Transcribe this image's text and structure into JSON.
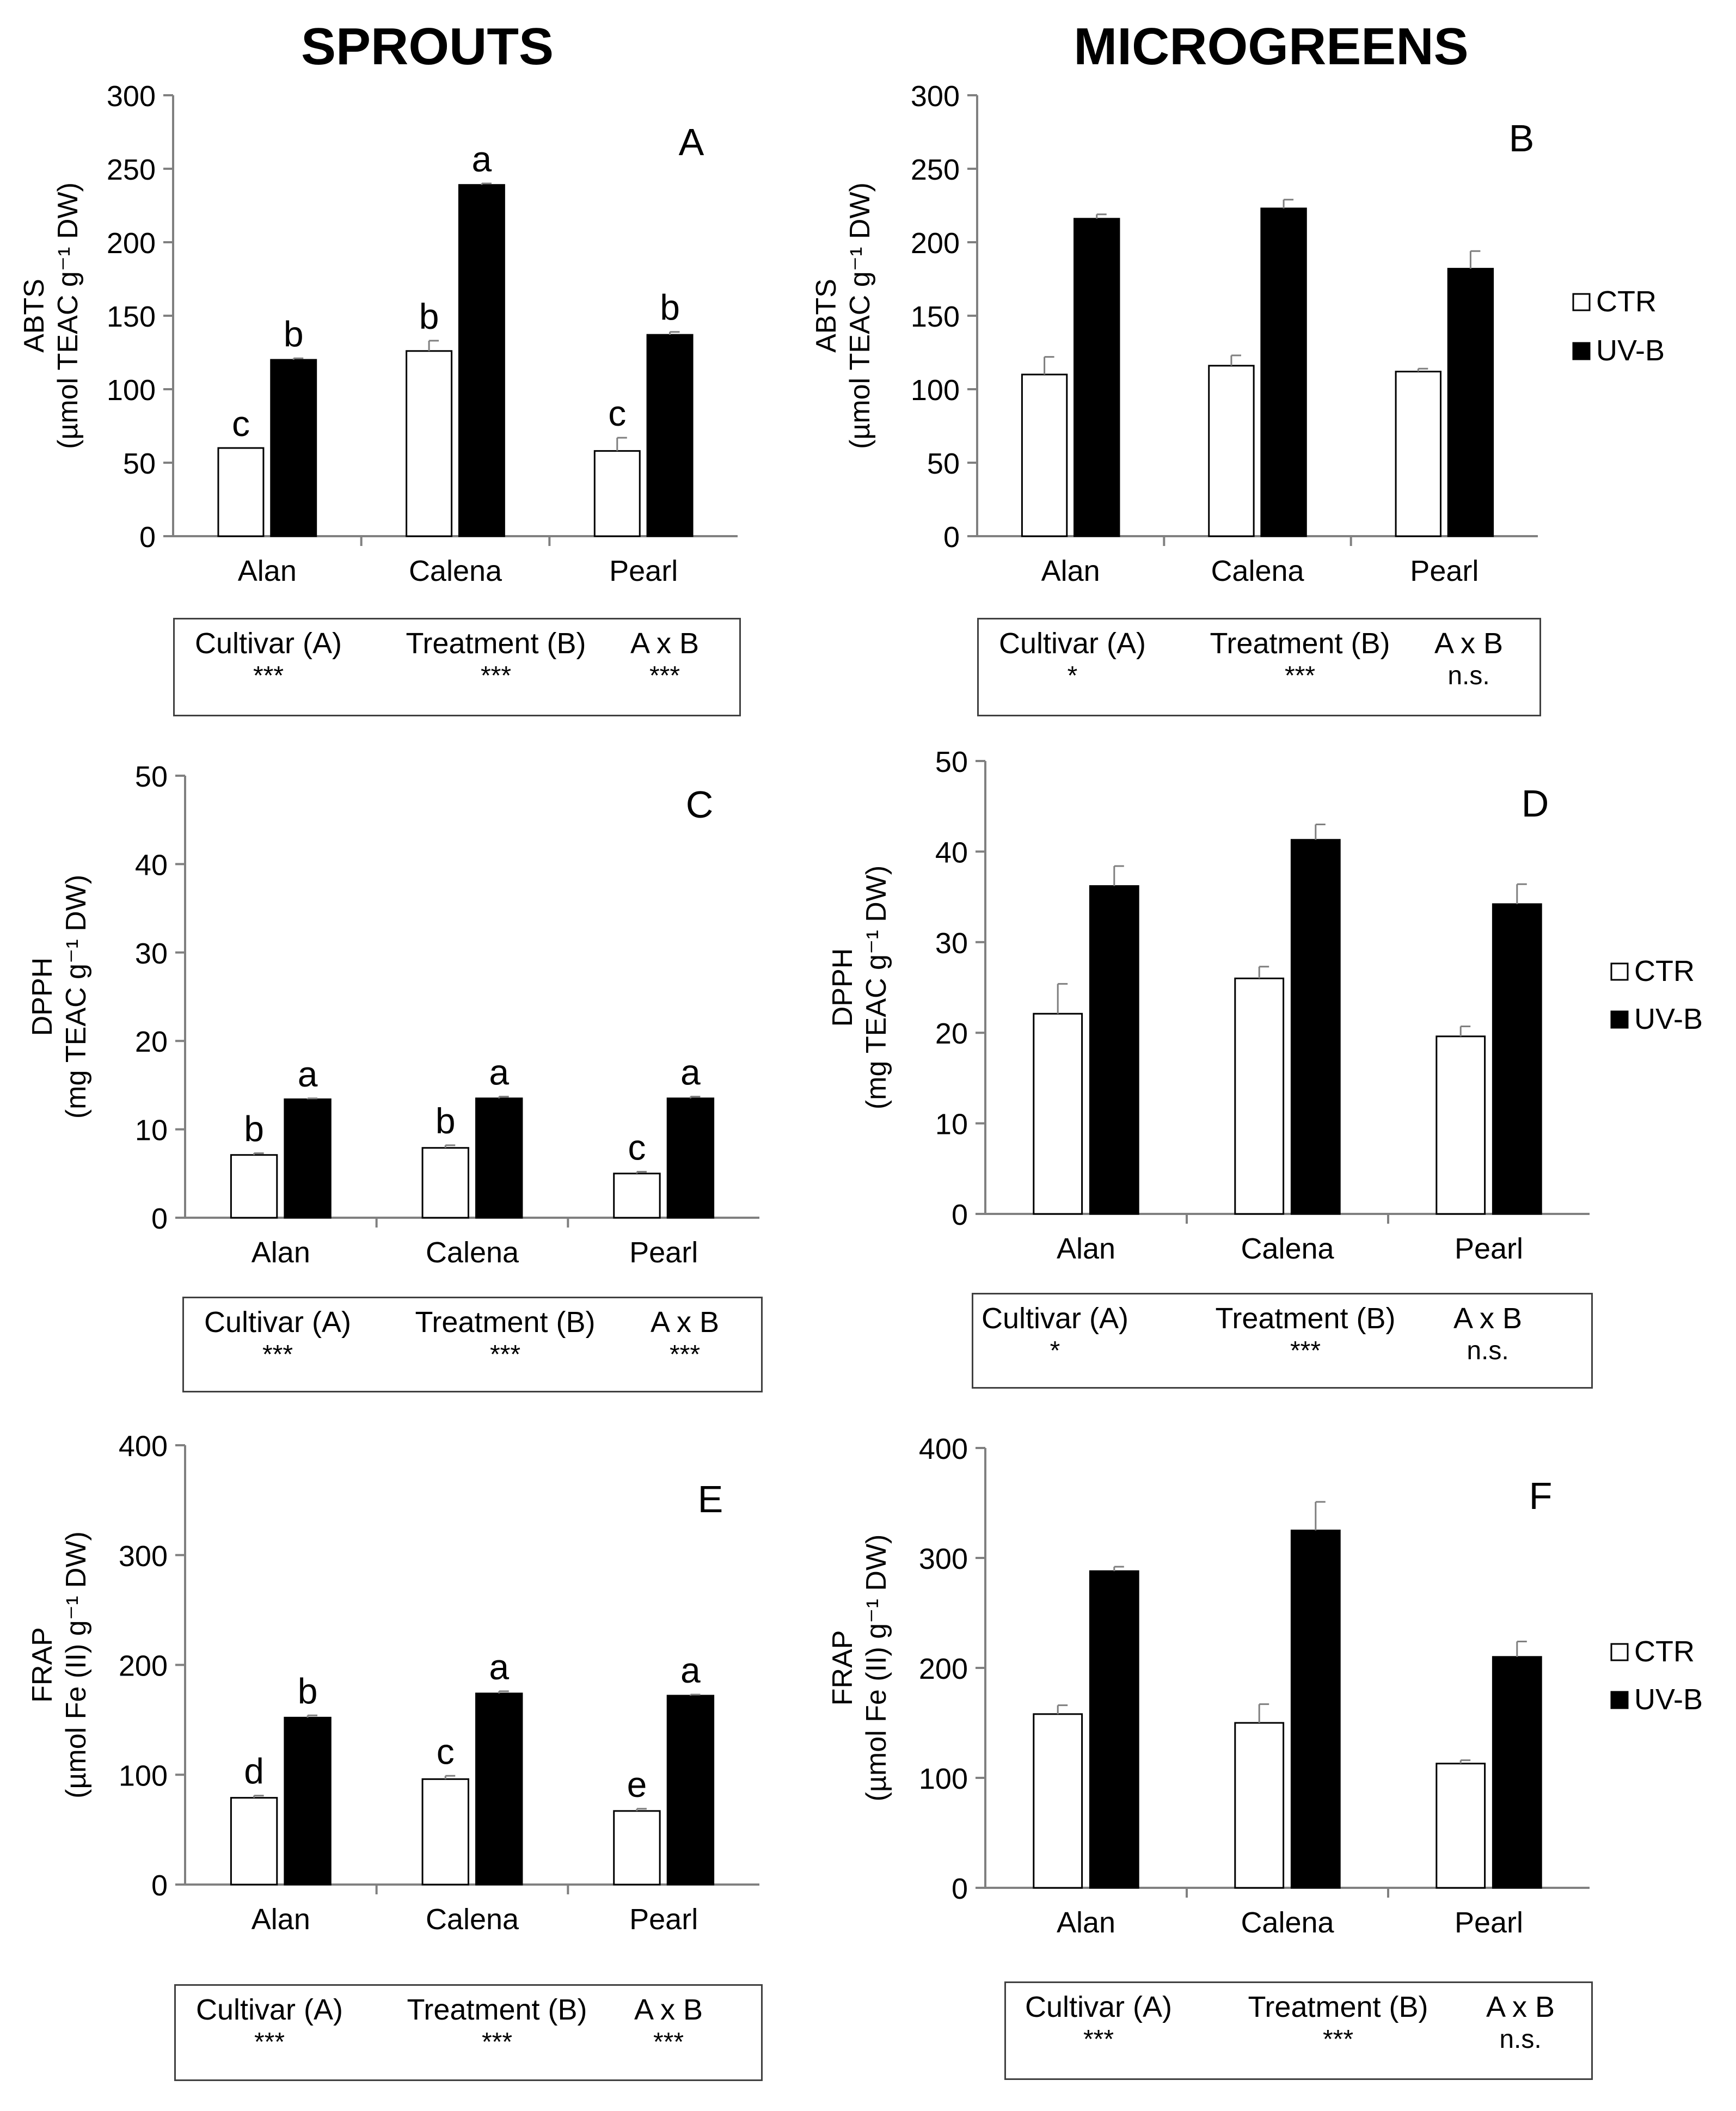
{
  "column_titles": {
    "left": "SPROUTS",
    "right": "MICROGREENS"
  },
  "legend": {
    "entries": [
      {
        "label": "CTR",
        "color": "#ffffff"
      },
      {
        "label": "UV-B",
        "color": "#000000"
      }
    ]
  },
  "colors": {
    "ctr_fill": "#ffffff",
    "uvb_fill": "#000000",
    "axis": "#808080",
    "text": "#000000"
  },
  "chart_data": [
    {
      "id": "A",
      "type": "bar",
      "panel_letter": "A",
      "ylabel_line1": "ABTS",
      "ylabel_line2": "(µmol TEAC g⁻¹ DW)",
      "categories": [
        "Alan",
        "Calena",
        "Pearl"
      ],
      "ylim": [
        0,
        300
      ],
      "yticks": [
        0,
        50,
        100,
        150,
        200,
        250,
        300
      ],
      "series": [
        {
          "name": "CTR",
          "values": [
            60,
            126,
            58
          ],
          "errors": [
            0,
            7,
            9
          ],
          "letters": [
            "c",
            "b",
            "c"
          ]
        },
        {
          "name": "UV-B",
          "values": [
            120,
            239,
            137
          ],
          "errors": [
            1,
            1,
            2
          ],
          "letters": [
            "b",
            "a",
            "b"
          ]
        }
      ],
      "anova": {
        "cultivar_label": "Cultivar (A)",
        "cultivar_sig": "***",
        "treatment_label": "Treatment (B)",
        "treatment_sig": "***",
        "interaction_label": "A x B",
        "interaction_sig": "***"
      }
    },
    {
      "id": "B",
      "type": "bar",
      "panel_letter": "B",
      "ylabel_line1": "ABTS",
      "ylabel_line2": "(µmol TEAC g⁻¹ DW)",
      "categories": [
        "Alan",
        "Calena",
        "Pearl"
      ],
      "ylim": [
        0,
        300
      ],
      "yticks": [
        0,
        50,
        100,
        150,
        200,
        250,
        300
      ],
      "series": [
        {
          "name": "CTR",
          "values": [
            110,
            116,
            112
          ],
          "errors": [
            12,
            7,
            2
          ],
          "letters": []
        },
        {
          "name": "UV-B",
          "values": [
            216,
            223,
            182
          ],
          "errors": [
            3,
            6,
            12
          ],
          "letters": []
        }
      ],
      "anova": {
        "cultivar_label": "Cultivar (A)",
        "cultivar_sig": "*",
        "treatment_label": "Treatment (B)",
        "treatment_sig": "***",
        "interaction_label": "A x B",
        "interaction_sig": "n.s."
      }
    },
    {
      "id": "C",
      "type": "bar",
      "panel_letter": "C",
      "ylabel_line1": "DPPH",
      "ylabel_line2": "(mg TEAC g⁻¹ DW)",
      "categories": [
        "Alan",
        "Calena",
        "Pearl"
      ],
      "ylim": [
        0,
        50
      ],
      "yticks": [
        0,
        10,
        20,
        30,
        40,
        50
      ],
      "series": [
        {
          "name": "CTR",
          "values": [
            7.1,
            7.9,
            5.0
          ],
          "errors": [
            0.2,
            0.3,
            0.2
          ],
          "letters": [
            "b",
            "b",
            "c"
          ]
        },
        {
          "name": "UV-B",
          "values": [
            13.4,
            13.5,
            13.5
          ],
          "errors": [
            0.1,
            0.2,
            0.2
          ],
          "letters": [
            "a",
            "a",
            "a"
          ]
        }
      ],
      "anova": {
        "cultivar_label": "Cultivar (A)",
        "cultivar_sig": "***",
        "treatment_label": "Treatment (B)",
        "treatment_sig": "***",
        "interaction_label": "A x B",
        "interaction_sig": "***"
      }
    },
    {
      "id": "D",
      "type": "bar",
      "panel_letter": "D",
      "ylabel_line1": "DPPH",
      "ylabel_line2": "(mg TEAC g⁻¹ DW)",
      "categories": [
        "Alan",
        "Calena",
        "Pearl"
      ],
      "ylim": [
        0,
        50
      ],
      "yticks": [
        0,
        10,
        20,
        30,
        40,
        50
      ],
      "series": [
        {
          "name": "CTR",
          "values": [
            22.1,
            26.0,
            19.6
          ],
          "errors": [
            3.3,
            1.3,
            1.1
          ],
          "letters": []
        },
        {
          "name": "UV-B",
          "values": [
            36.2,
            41.3,
            34.2
          ],
          "errors": [
            2.2,
            1.7,
            2.2
          ],
          "letters": []
        }
      ],
      "anova": {
        "cultivar_label": "Cultivar (A)",
        "cultivar_sig": "*",
        "treatment_label": "Treatment (B)",
        "treatment_sig": "***",
        "interaction_label": "A x B",
        "interaction_sig": "n.s."
      }
    },
    {
      "id": "E",
      "type": "bar",
      "panel_letter": "E",
      "ylabel_line1": "FRAP",
      "ylabel_line2": "(µmol Fe (II) g⁻¹ DW)",
      "categories": [
        "Alan",
        "Calena",
        "Pearl"
      ],
      "ylim": [
        0,
        400
      ],
      "yticks": [
        0,
        100,
        200,
        300,
        400
      ],
      "series": [
        {
          "name": "CTR",
          "values": [
            79,
            96,
            67
          ],
          "errors": [
            2,
            3,
            2
          ],
          "letters": [
            "d",
            "c",
            "e"
          ]
        },
        {
          "name": "UV-B",
          "values": [
            152,
            174,
            172
          ],
          "errors": [
            2,
            2,
            1
          ],
          "letters": [
            "b",
            "a",
            "a"
          ]
        }
      ],
      "anova": {
        "cultivar_label": "Cultivar (A)",
        "cultivar_sig": "***",
        "treatment_label": "Treatment (B)",
        "treatment_sig": "***",
        "interaction_label": "A x B",
        "interaction_sig": "***"
      }
    },
    {
      "id": "F",
      "type": "bar",
      "panel_letter": "F",
      "ylabel_line1": "FRAP",
      "ylabel_line2": "(µmol Fe (II) g⁻¹ DW)",
      "categories": [
        "Alan",
        "Calena",
        "Pearl"
      ],
      "ylim": [
        0,
        400
      ],
      "yticks": [
        0,
        100,
        200,
        300,
        400
      ],
      "series": [
        {
          "name": "CTR",
          "values": [
            158,
            150,
            113
          ],
          "errors": [
            8,
            17,
            3
          ],
          "letters": []
        },
        {
          "name": "UV-B",
          "values": [
            288,
            325,
            210
          ],
          "errors": [
            4,
            26,
            14
          ],
          "letters": []
        }
      ],
      "anova": {
        "cultivar_label": "Cultivar (A)",
        "cultivar_sig": "***",
        "treatment_label": "Treatment (B)",
        "treatment_sig": "***",
        "interaction_label": "A x B",
        "interaction_sig": "n.s."
      }
    }
  ]
}
